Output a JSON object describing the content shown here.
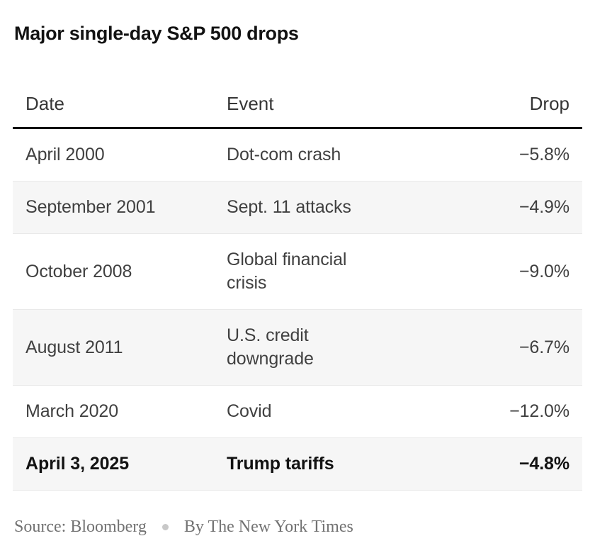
{
  "chart_data": {
    "type": "table",
    "title": "Major single-day S&P 500 drops",
    "columns": [
      "Date",
      "Event",
      "Drop"
    ],
    "rows": [
      {
        "date": "April 2000",
        "event": "Dot-com crash",
        "drop": "−5.8%",
        "drop_value_pct": -5.8,
        "highlighted": false
      },
      {
        "date": "September 2001",
        "event": "Sept. 11 attacks",
        "drop": "−4.9%",
        "drop_value_pct": -4.9,
        "highlighted": false
      },
      {
        "date": "October 2008",
        "event": "Global financial crisis",
        "drop": "−9.0%",
        "drop_value_pct": -9.0,
        "highlighted": false
      },
      {
        "date": "August 2011",
        "event": "U.S. credit downgrade",
        "drop": "−6.7%",
        "drop_value_pct": -6.7,
        "highlighted": false
      },
      {
        "date": "March 2020",
        "event": "Covid",
        "drop": "−12.0%",
        "drop_value_pct": -12.0,
        "highlighted": false
      },
      {
        "date": "April 3, 2025",
        "event": "Trump tariffs",
        "drop": "−4.8%",
        "drop_value_pct": -4.8,
        "highlighted": true
      }
    ],
    "source": "Source: Bloomberg",
    "byline": "By The New York Times",
    "layout": {
      "striped_row_indexes": [
        1,
        3,
        5
      ],
      "header_rule": true,
      "grid": false,
      "drop_column_align": "right"
    }
  },
  "colors": {
    "background": "#ffffff",
    "title_text": "#121212",
    "header_text": "#363636",
    "body_text": "#404040",
    "highlight_text": "#121212",
    "stripe_background": "#f6f6f6",
    "stripe_border": "#e9e9e9",
    "header_rule": "#121212",
    "footer_text": "#727272",
    "footer_dot": "#c8c8c8"
  }
}
